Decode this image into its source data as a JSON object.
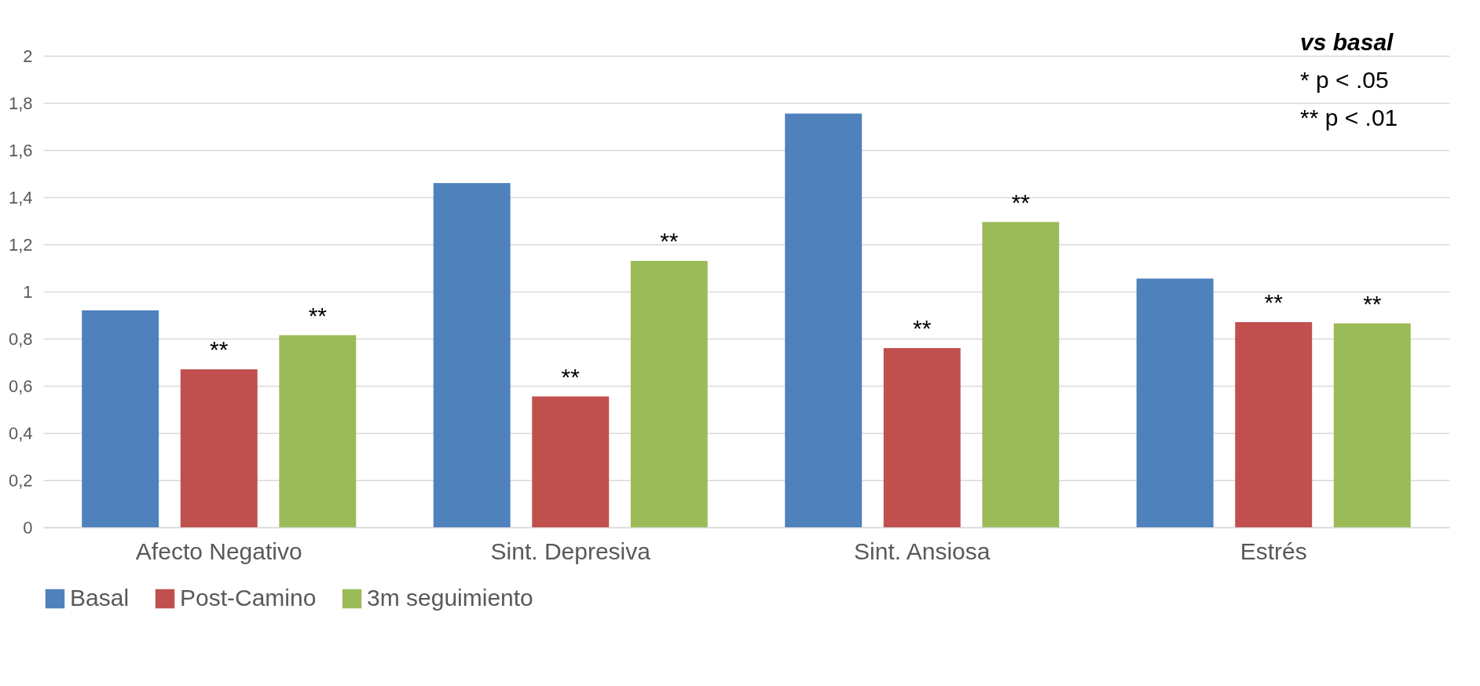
{
  "chart_data": {
    "type": "bar",
    "categories": [
      "Afecto Negativo",
      "Sint. Depresiva",
      "Sint. Ansiosa",
      "Estrés"
    ],
    "series": [
      {
        "name": "Basal",
        "color": "#4f81bd",
        "values": [
          0.92,
          1.46,
          1.755,
          1.055
        ]
      },
      {
        "name": "Post-Camino",
        "color": "#c0504d",
        "values": [
          0.67,
          0.555,
          0.76,
          0.87
        ],
        "value_labels": [
          "**",
          "**",
          "**",
          "**"
        ]
      },
      {
        "name": "3m seguimiento",
        "color": "#9bbb59",
        "values": [
          0.815,
          1.13,
          1.295,
          0.865
        ],
        "value_labels": [
          "**",
          "**",
          "**",
          "**"
        ]
      }
    ],
    "ylim": [
      0,
      2
    ],
    "yticks": [
      {
        "value": 0,
        "label": "0"
      },
      {
        "value": 0.2,
        "label": "0,2"
      },
      {
        "value": 0.4,
        "label": "0,4"
      },
      {
        "value": 0.6,
        "label": "0,6"
      },
      {
        "value": 0.8,
        "label": "0,8"
      },
      {
        "value": 1,
        "label": "1"
      },
      {
        "value": 1.2,
        "label": "1,2"
      },
      {
        "value": 1.4,
        "label": "1,4"
      },
      {
        "value": 1.6,
        "label": "1,6"
      },
      {
        "value": 1.8,
        "label": "1,8"
      },
      {
        "value": 2,
        "label": "2"
      }
    ],
    "grid": "y",
    "legend": "bottom",
    "annotations": [
      "vs basal",
      "*   p < .05",
      "** p < .01"
    ]
  }
}
